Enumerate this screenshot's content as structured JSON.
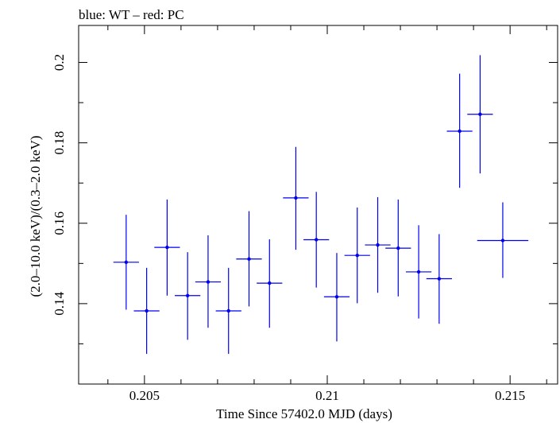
{
  "chart_data": {
    "type": "scatter",
    "title": "blue: WT – red: PC",
    "xlabel": "Time Since 57402.0 MJD (days)",
    "ylabel": "(2.0–10.0 keV)/(0.3–2.0 keV)",
    "xlim": [
      0.2032,
      0.2163
    ],
    "ylim": [
      0.12,
      0.2092
    ],
    "x_ticks": [
      {
        "value": 0.205,
        "label": "0.205"
      },
      {
        "value": 0.21,
        "label": "0.21"
      },
      {
        "value": 0.215,
        "label": "0.215"
      }
    ],
    "y_ticks": [
      {
        "value": 0.14,
        "label": "0.14"
      },
      {
        "value": 0.16,
        "label": "0.16"
      },
      {
        "value": 0.18,
        "label": "0.18"
      },
      {
        "value": 0.2,
        "label": "0.2"
      }
    ],
    "grid": false,
    "legend": "none",
    "series": [
      {
        "color": "#0000ee",
        "points": [
          {
            "x": 0.2045,
            "xerr": 0.00035,
            "y": 0.1503,
            "yerr_low": 0.0118,
            "yerr_high": 0.0118
          },
          {
            "x": 0.20506,
            "xerr": 0.00035,
            "y": 0.1382,
            "yerr_low": 0.0107,
            "yerr_high": 0.0107
          },
          {
            "x": 0.20562,
            "xerr": 0.00035,
            "y": 0.154,
            "yerr_low": 0.012,
            "yerr_high": 0.0119
          },
          {
            "x": 0.20618,
            "xerr": 0.00035,
            "y": 0.142,
            "yerr_low": 0.011,
            "yerr_high": 0.0108
          },
          {
            "x": 0.20674,
            "xerr": 0.00035,
            "y": 0.1454,
            "yerr_low": 0.0114,
            "yerr_high": 0.0116
          },
          {
            "x": 0.2073,
            "xerr": 0.00035,
            "y": 0.1382,
            "yerr_low": 0.0107,
            "yerr_high": 0.0107
          },
          {
            "x": 0.20786,
            "xerr": 0.00035,
            "y": 0.1511,
            "yerr_low": 0.0118,
            "yerr_high": 0.0119
          },
          {
            "x": 0.20842,
            "xerr": 0.00035,
            "y": 0.1451,
            "yerr_low": 0.0111,
            "yerr_high": 0.0109
          },
          {
            "x": 0.20914,
            "xerr": 0.00035,
            "y": 0.1663,
            "yerr_low": 0.0129,
            "yerr_high": 0.0127
          },
          {
            "x": 0.2097,
            "xerr": 0.00035,
            "y": 0.1559,
            "yerr_low": 0.0119,
            "yerr_high": 0.0119
          },
          {
            "x": 0.21026,
            "xerr": 0.00035,
            "y": 0.1417,
            "yerr_low": 0.0111,
            "yerr_high": 0.0109
          },
          {
            "x": 0.21082,
            "xerr": 0.00035,
            "y": 0.152,
            "yerr_low": 0.0119,
            "yerr_high": 0.0119
          },
          {
            "x": 0.21138,
            "xerr": 0.00035,
            "y": 0.1546,
            "yerr_low": 0.0119,
            "yerr_high": 0.0119
          },
          {
            "x": 0.21194,
            "xerr": 0.00035,
            "y": 0.1538,
            "yerr_low": 0.012,
            "yerr_high": 0.0121
          },
          {
            "x": 0.2125,
            "xerr": 0.00035,
            "y": 0.1479,
            "yerr_low": 0.0116,
            "yerr_high": 0.0116
          },
          {
            "x": 0.21306,
            "xerr": 0.00035,
            "y": 0.1462,
            "yerr_low": 0.0112,
            "yerr_high": 0.0111
          },
          {
            "x": 0.21362,
            "xerr": 0.00035,
            "y": 0.1829,
            "yerr_low": 0.0141,
            "yerr_high": 0.0143
          },
          {
            "x": 0.21418,
            "xerr": 0.00035,
            "y": 0.1871,
            "yerr_low": 0.0147,
            "yerr_high": 0.0147
          },
          {
            "x": 0.2148,
            "xerr": 0.0007,
            "y": 0.1557,
            "yerr_low": 0.0093,
            "yerr_high": 0.0095
          }
        ]
      }
    ]
  }
}
